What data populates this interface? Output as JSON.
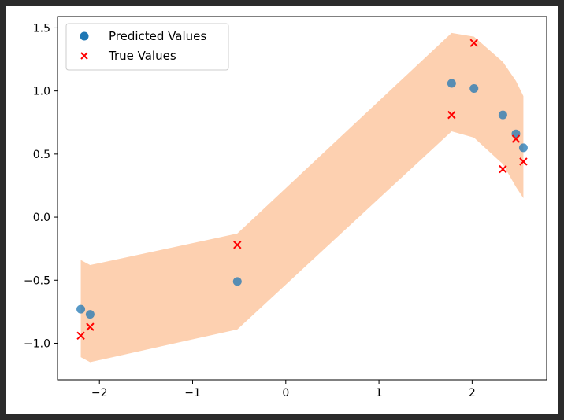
{
  "chart_data": {
    "type": "scatter",
    "title": "",
    "xlabel": "",
    "ylabel": "",
    "xlim": [
      -2.45,
      2.8
    ],
    "ylim": [
      -1.29,
      1.59
    ],
    "xticks": [
      -2,
      -1,
      0,
      1,
      2
    ],
    "yticks": [
      -1.0,
      -0.5,
      0.0,
      0.5,
      1.0,
      1.5
    ],
    "xtick_labels": [
      "−2",
      "−1",
      "0",
      "1",
      "2"
    ],
    "ytick_labels": [
      "−1.0",
      "−0.5",
      "0.0",
      "0.5",
      "1.0",
      "1.5"
    ],
    "legend_position": "upper-left",
    "band": {
      "color": "#fdd0b0",
      "x": [
        -2.2,
        -2.1,
        -0.52,
        1.78,
        2.02,
        2.33,
        2.47,
        2.55
      ],
      "lower": [
        -1.11,
        -1.15,
        -0.89,
        0.68,
        0.63,
        0.42,
        0.24,
        0.15
      ],
      "upper": [
        -0.34,
        -0.38,
        -0.13,
        1.46,
        1.43,
        1.23,
        1.08,
        0.96
      ]
    },
    "series": [
      {
        "name": "Predicted Values",
        "marker": "circle",
        "color": "#1f77b4",
        "x": [
          -2.2,
          -2.1,
          -0.52,
          1.78,
          2.02,
          2.33,
          2.47,
          2.55
        ],
        "y": [
          -0.73,
          -0.77,
          -0.51,
          1.06,
          1.02,
          0.81,
          0.66,
          0.55
        ]
      },
      {
        "name": "True Values",
        "marker": "x",
        "color": "#ff0000",
        "x": [
          -2.2,
          -2.1,
          -0.52,
          1.78,
          2.02,
          2.33,
          2.47,
          2.55
        ],
        "y": [
          -0.94,
          -0.87,
          -0.22,
          0.81,
          1.38,
          0.38,
          0.62,
          0.44
        ]
      }
    ]
  }
}
